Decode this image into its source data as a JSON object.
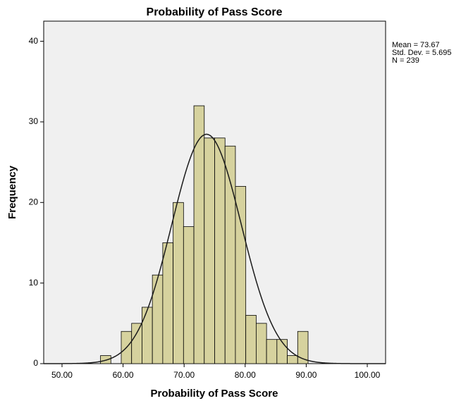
{
  "chart_data": {
    "type": "histogram",
    "title": "Probability of Pass Score",
    "x_label": "Probability of Pass Score",
    "y_label": "Frequency",
    "bins": [
      56.3,
      58.0,
      59.7,
      61.4,
      63.1,
      64.8,
      66.5,
      68.2,
      69.9,
      71.6,
      73.3,
      75.0,
      76.7,
      78.4,
      80.1,
      81.8,
      83.5,
      85.2,
      86.9,
      88.6,
      90.3
    ],
    "counts": [
      1,
      0,
      4,
      5,
      7,
      11,
      15,
      20,
      17,
      32,
      28,
      28,
      27,
      22,
      6,
      5,
      3,
      3,
      1,
      4
    ],
    "color": "#d6d29e",
    "curve_color": "#1a1a1a",
    "xlim": [
      47,
      103
    ],
    "ylim": [
      0,
      42.5
    ],
    "xticks": [
      {
        "value": 50,
        "label": "50.00"
      },
      {
        "value": 60,
        "label": "60.00"
      },
      {
        "value": 70,
        "label": "70.00"
      },
      {
        "value": 80,
        "label": "80.00"
      },
      {
        "value": 90,
        "label": "90.00"
      },
      {
        "value": 100,
        "label": "100.00"
      }
    ],
    "yticks": [
      0,
      10,
      20,
      30,
      40
    ],
    "stats": [
      {
        "value": 73.67,
        "label": "Mean = 73.67"
      },
      {
        "value": 5.695,
        "label": "Std. Dev. = 5.695"
      },
      {
        "value": 239,
        "label": "N = 239"
      }
    ]
  }
}
